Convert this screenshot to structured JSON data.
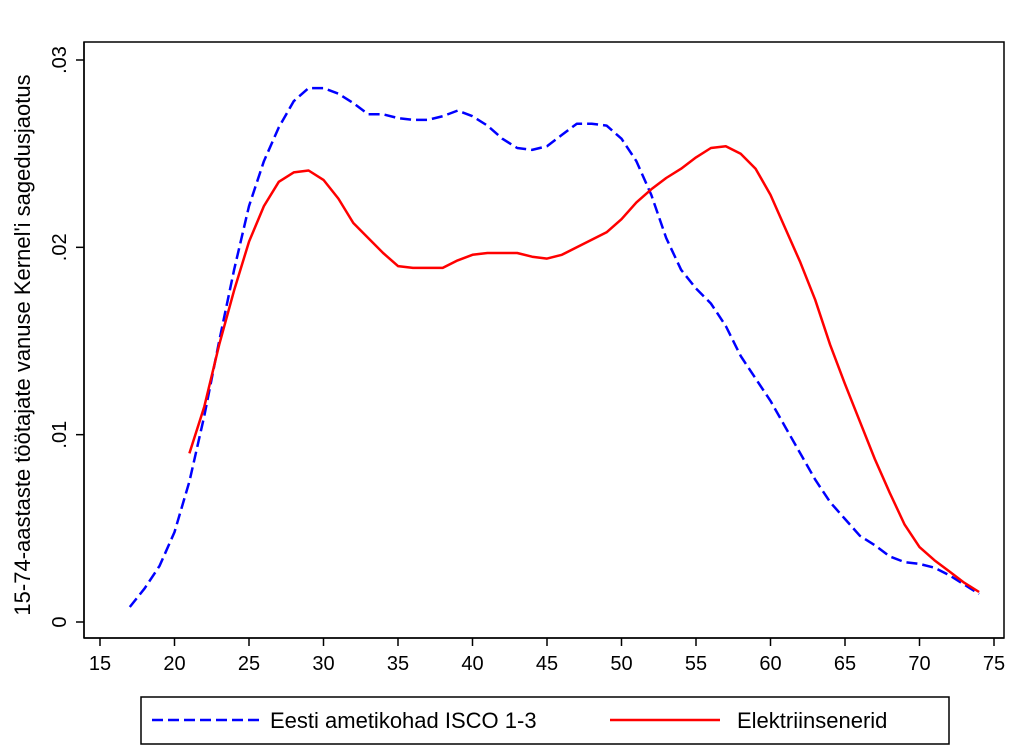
{
  "chart_data": {
    "type": "line",
    "title": "",
    "xlabel": "",
    "ylabel": "15-74-aastaste töötajate vanuse Kernel'i sagedusjaotus",
    "xlim": [
      15,
      75
    ],
    "ylim": [
      0,
      0.03
    ],
    "x_ticks": [
      15,
      20,
      25,
      30,
      35,
      40,
      45,
      50,
      55,
      60,
      65,
      70,
      75
    ],
    "x_tick_labels": [
      "15",
      "20",
      "25",
      "30",
      "35",
      "40",
      "45",
      "50",
      "55",
      "60",
      "65",
      "70",
      "75"
    ],
    "y_ticks": [
      0,
      0.01,
      0.02,
      0.03
    ],
    "y_tick_labels": [
      "0",
      ".01",
      ".02",
      ".03"
    ],
    "grid": false,
    "legend_position": "bottom",
    "series": [
      {
        "name": "Eesti ametikohad ISCO 1-3",
        "color": "#0000ff",
        "dash": "dashed",
        "x": [
          17,
          18,
          19,
          20,
          21,
          22,
          23,
          24,
          25,
          26,
          27,
          28,
          29,
          30,
          31,
          32,
          33,
          34,
          35,
          36,
          37,
          38,
          39,
          40,
          41,
          42,
          43,
          44,
          45,
          46,
          47,
          48,
          49,
          50,
          51,
          52,
          53,
          54,
          55,
          56,
          57,
          58,
          59,
          60,
          61,
          62,
          63,
          64,
          65,
          66,
          67,
          68,
          69,
          70,
          71,
          72,
          73,
          74
        ],
        "y": [
          0.0008,
          0.0018,
          0.003,
          0.0048,
          0.0075,
          0.011,
          0.015,
          0.0188,
          0.0222,
          0.0246,
          0.0264,
          0.0278,
          0.0285,
          0.0285,
          0.0282,
          0.0277,
          0.0271,
          0.0271,
          0.0269,
          0.0268,
          0.0268,
          0.027,
          0.0273,
          0.027,
          0.0265,
          0.0258,
          0.0253,
          0.0252,
          0.0254,
          0.026,
          0.0266,
          0.0266,
          0.0265,
          0.0258,
          0.0246,
          0.0228,
          0.0205,
          0.0188,
          0.0178,
          0.017,
          0.0158,
          0.0142,
          0.013,
          0.0118,
          0.0104,
          0.009,
          0.0076,
          0.0064,
          0.0055,
          0.0046,
          0.0041,
          0.0035,
          0.0032,
          0.0031,
          0.0029,
          0.0025,
          0.002,
          0.0015
        ]
      },
      {
        "name": "Elektriinsenerid",
        "color": "#ff0000",
        "dash": "solid",
        "x": [
          21,
          22,
          23,
          24,
          25,
          26,
          27,
          28,
          29,
          30,
          31,
          32,
          33,
          34,
          35,
          36,
          37,
          38,
          39,
          40,
          41,
          42,
          43,
          44,
          45,
          46,
          47,
          48,
          49,
          50,
          51,
          52,
          53,
          54,
          55,
          56,
          57,
          58,
          59,
          60,
          61,
          62,
          63,
          64,
          65,
          66,
          67,
          68,
          69,
          70,
          71,
          72,
          73,
          74
        ],
        "y": [
          0.009,
          0.0115,
          0.0148,
          0.0177,
          0.0203,
          0.0222,
          0.0235,
          0.024,
          0.0241,
          0.0236,
          0.0226,
          0.0213,
          0.0205,
          0.0197,
          0.019,
          0.0189,
          0.0189,
          0.0189,
          0.0193,
          0.0196,
          0.0197,
          0.0197,
          0.0197,
          0.0195,
          0.0194,
          0.0196,
          0.02,
          0.0204,
          0.0208,
          0.0215,
          0.0224,
          0.0231,
          0.0237,
          0.0242,
          0.0248,
          0.0253,
          0.0254,
          0.025,
          0.0242,
          0.0228,
          0.021,
          0.0192,
          0.0172,
          0.0148,
          0.0127,
          0.0107,
          0.0087,
          0.0069,
          0.0052,
          0.004,
          0.0033,
          0.0027,
          0.0021,
          0.0016
        ]
      }
    ]
  }
}
